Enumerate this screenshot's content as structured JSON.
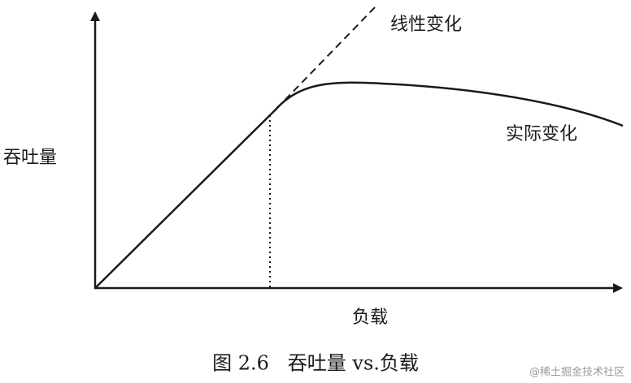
{
  "diagram": {
    "curve_labels": [
      "线性变化",
      "实际变化"
    ],
    "y_axis_label": "吞吐量",
    "x_axis_label": "负载",
    "caption": "图 2.6   吞吐量 vs.负载",
    "watermark": "@稀土掘金技术社区"
  }
}
